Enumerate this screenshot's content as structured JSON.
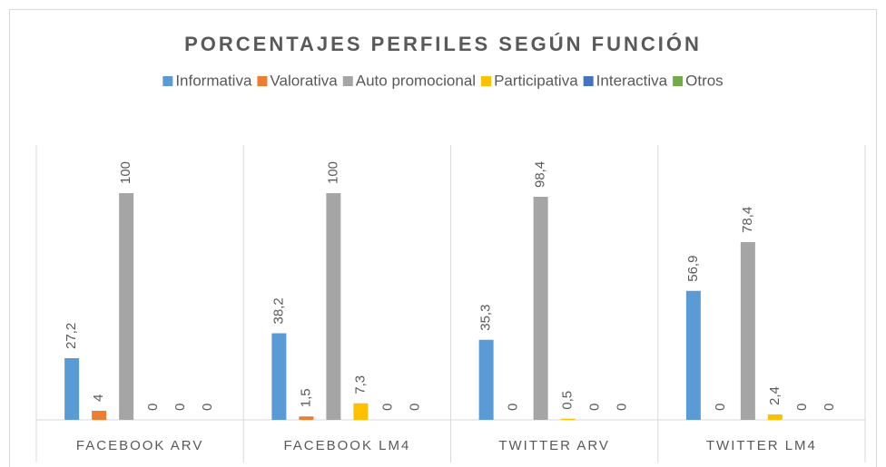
{
  "chart_data": {
    "type": "bar",
    "title": "PORCENTAJES PERFILES SEGÚN FUNCIÓN",
    "categories": [
      "FACEBOOK ARV",
      "FACEBOOK LM4",
      "TWITTER ARV",
      "TWITTER LM4"
    ],
    "series": [
      {
        "name": "Informativa",
        "color": "#5b9bd5",
        "values": [
          27.2,
          38.2,
          35.3,
          56.9
        ],
        "value_labels": [
          "27,2",
          "38,2",
          "35,3",
          "56,9"
        ]
      },
      {
        "name": "Valorativa",
        "color": "#ed7d31",
        "values": [
          4,
          1.5,
          0,
          0
        ],
        "value_labels": [
          "4",
          "1,5",
          "0",
          "0"
        ]
      },
      {
        "name": "Auto promocional",
        "color": "#a5a5a5",
        "values": [
          100,
          100,
          98.4,
          78.4
        ],
        "value_labels": [
          "100",
          "100",
          "98,4",
          "78,4"
        ]
      },
      {
        "name": "Participativa",
        "color": "#ffc000",
        "values": [
          0,
          7.3,
          0.5,
          2.4
        ],
        "value_labels": [
          "0",
          "7,3",
          "0,5",
          "2,4"
        ]
      },
      {
        "name": "Interactiva",
        "color": "#4472c4",
        "values": [
          0,
          0,
          0,
          0
        ],
        "value_labels": [
          "0",
          "0",
          "0",
          "0"
        ]
      },
      {
        "name": "Otros",
        "color": "#70ad47",
        "values": [
          0,
          0,
          0,
          0
        ],
        "value_labels": [
          "0",
          "0",
          "0",
          "0"
        ]
      }
    ],
    "ylim": [
      0,
      120
    ],
    "legend": "top"
  }
}
